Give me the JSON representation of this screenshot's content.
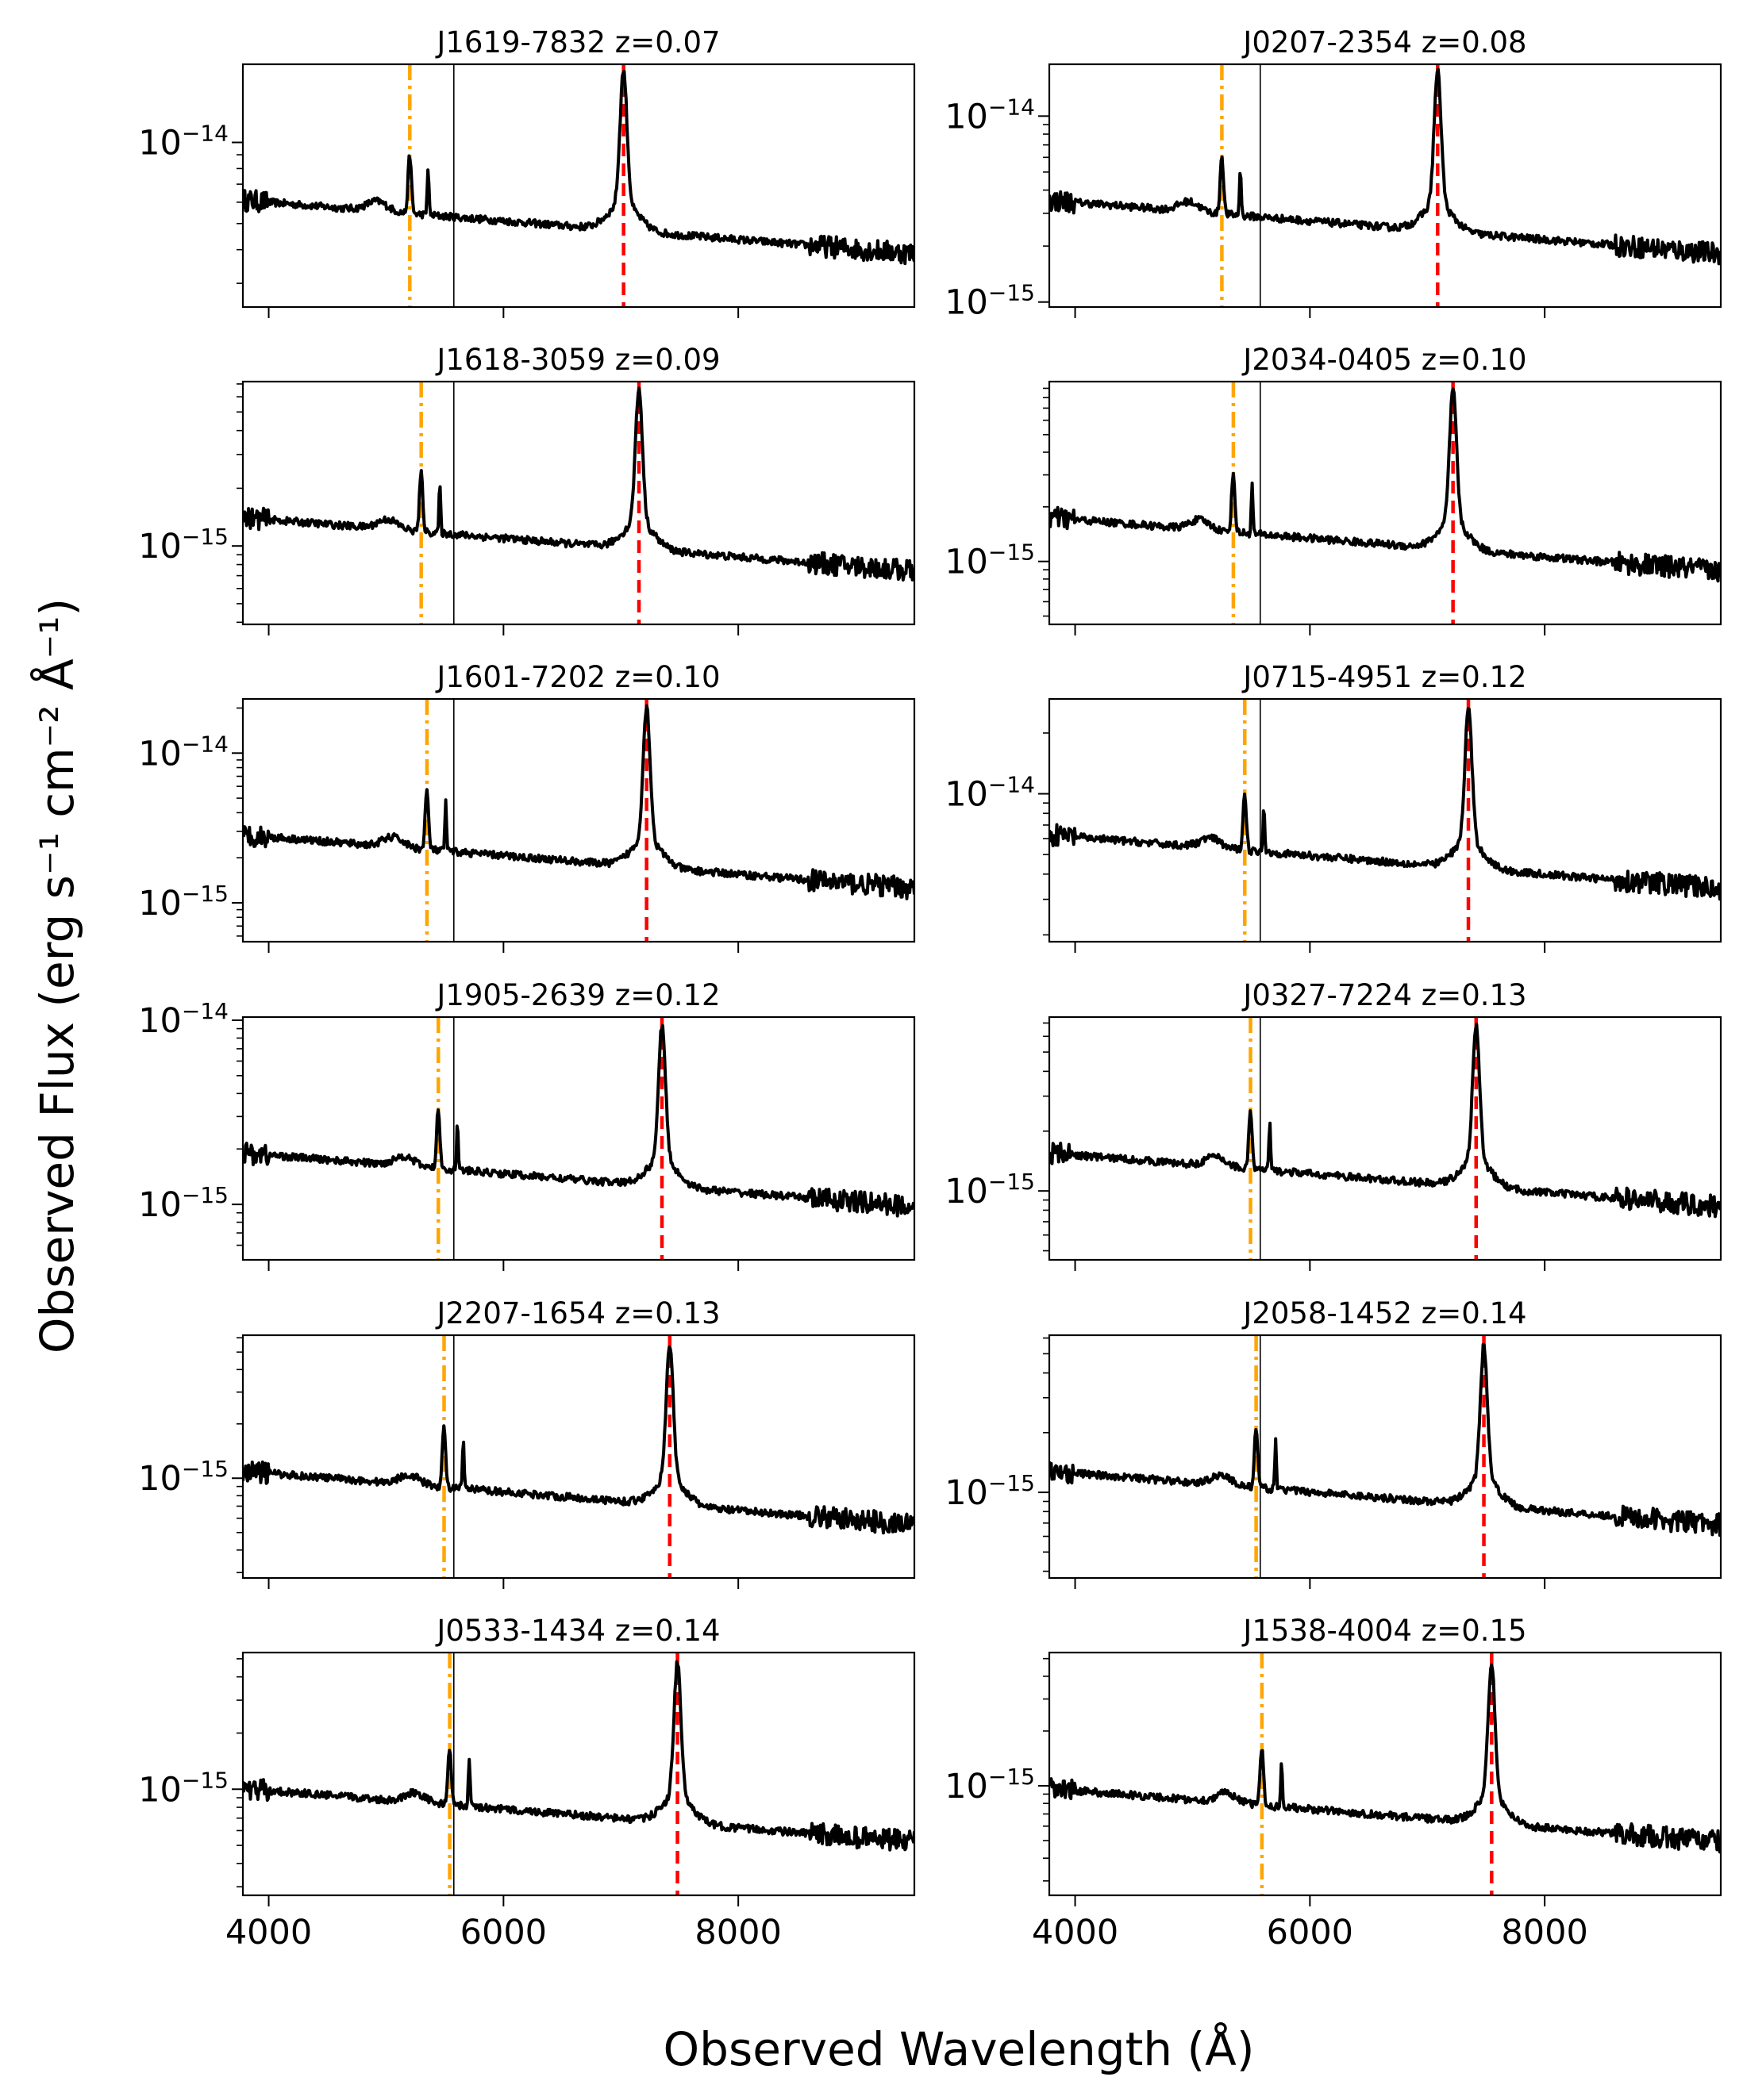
{
  "figure": {
    "xlabel": "Observed Wavelength (Å)",
    "ylabel": "Observed Flux (erg s⁻¹ cm⁻² Å⁻¹)"
  },
  "chart_data": [
    {
      "type": "line",
      "title": "J1619-7832 z=0.07",
      "z": 0.07,
      "xlim": [
        3780,
        9500
      ],
      "ylim": [
        2.45e-15,
        1.95e-14
      ],
      "yticks": [
        {
          "value": 1e-14,
          "label_base": "10",
          "label_exp": "−14"
        }
      ],
      "series": [
        {
          "name": "spectrum",
          "color": "#000000"
        }
      ],
      "lines": [
        {
          "name": "Hβ",
          "x": 5202,
          "color": "#FFA500",
          "style": "dashdot"
        },
        {
          "name": "Hα",
          "x": 7023,
          "color": "#FF0000",
          "style": "dashed"
        },
        {
          "name": "5577",
          "x": 5577,
          "color": "#000000",
          "style": "solid"
        }
      ]
    },
    {
      "type": "line",
      "title": "J0207-2354 z=0.08",
      "z": 0.08,
      "xlim": [
        3780,
        9500
      ],
      "ylim": [
        9.4e-16,
        1.9e-14
      ],
      "yticks": [
        {
          "value": 1e-14,
          "label_base": "10",
          "label_exp": "−14"
        },
        {
          "value": 1e-15,
          "label_base": "10",
          "label_exp": "−15"
        }
      ],
      "series": [
        {
          "name": "spectrum",
          "color": "#000000"
        }
      ],
      "lines": [
        {
          "name": "Hβ",
          "x": 5250,
          "color": "#FFA500",
          "style": "dashdot"
        },
        {
          "name": "Hα",
          "x": 7088,
          "color": "#FF0000",
          "style": "dashed"
        },
        {
          "name": "5577",
          "x": 5577,
          "color": "#000000",
          "style": "solid"
        }
      ]
    },
    {
      "type": "line",
      "title": "J1618-3059 z=0.09",
      "z": 0.09,
      "xlim": [
        3780,
        9500
      ],
      "ylim": [
        3.9e-16,
        7.2e-15
      ],
      "yticks": [
        {
          "value": 1e-15,
          "label_base": "10",
          "label_exp": "−15"
        }
      ],
      "series": [
        {
          "name": "spectrum",
          "color": "#000000"
        }
      ],
      "lines": [
        {
          "name": "Hβ",
          "x": 5299,
          "color": "#FFA500",
          "style": "dashdot"
        },
        {
          "name": "Hα",
          "x": 7154,
          "color": "#FF0000",
          "style": "dashed"
        },
        {
          "name": "5577",
          "x": 5577,
          "color": "#000000",
          "style": "solid"
        }
      ]
    },
    {
      "type": "line",
      "title": "J2034-0405 z=0.10",
      "z": 0.1,
      "xlim": [
        3780,
        9500
      ],
      "ylim": [
        4.5e-16,
        9.8e-15
      ],
      "yticks": [
        {
          "value": 1e-15,
          "label_base": "10",
          "label_exp": "−15"
        }
      ],
      "series": [
        {
          "name": "spectrum",
          "color": "#000000"
        }
      ],
      "lines": [
        {
          "name": "Hβ",
          "x": 5348,
          "color": "#FFA500",
          "style": "dashdot"
        },
        {
          "name": "Hα",
          "x": 7219,
          "color": "#FF0000",
          "style": "dashed"
        },
        {
          "name": "5577",
          "x": 5577,
          "color": "#000000",
          "style": "solid"
        }
      ]
    },
    {
      "type": "line",
      "title": "J1601-7202 z=0.10",
      "z": 0.1,
      "xlim": [
        3780,
        9500
      ],
      "ylim": [
        5.5e-16,
        2.3e-14
      ],
      "yticks": [
        {
          "value": 1e-14,
          "label_base": "10",
          "label_exp": "−14"
        },
        {
          "value": 1e-15,
          "label_base": "10",
          "label_exp": "−15"
        }
      ],
      "series": [
        {
          "name": "spectrum",
          "color": "#000000"
        }
      ],
      "lines": [
        {
          "name": "Hβ",
          "x": 5348,
          "color": "#FFA500",
          "style": "dashdot"
        },
        {
          "name": "Hα",
          "x": 7219,
          "color": "#FF0000",
          "style": "dashed"
        },
        {
          "name": "5577",
          "x": 5577,
          "color": "#000000",
          "style": "solid"
        }
      ]
    },
    {
      "type": "line",
      "title": "J0715-4951 z=0.12",
      "z": 0.12,
      "xlim": [
        3780,
        9500
      ],
      "ylim": [
        1.85e-15,
        2.95e-14
      ],
      "yticks": [
        {
          "value": 1e-14,
          "label_base": "10",
          "label_exp": "−14"
        }
      ],
      "series": [
        {
          "name": "spectrum",
          "color": "#000000"
        }
      ],
      "lines": [
        {
          "name": "Hβ",
          "x": 5445,
          "color": "#FFA500",
          "style": "dashdot"
        },
        {
          "name": "Hα",
          "x": 7350,
          "color": "#FF0000",
          "style": "dashed"
        },
        {
          "name": "5577",
          "x": 5577,
          "color": "#000000",
          "style": "solid"
        }
      ]
    },
    {
      "type": "line",
      "title": "J1905-2639 z=0.12",
      "z": 0.12,
      "xlim": [
        3780,
        9500
      ],
      "ylim": [
        5e-16,
        1.04e-14
      ],
      "yticks": [
        {
          "value": 1e-14,
          "label_base": "10",
          "label_exp": "−14"
        },
        {
          "value": 1e-15,
          "label_base": "10",
          "label_exp": "−15"
        }
      ],
      "series": [
        {
          "name": "spectrum",
          "color": "#000000"
        }
      ],
      "lines": [
        {
          "name": "Hβ",
          "x": 5445,
          "color": "#FFA500",
          "style": "dashdot"
        },
        {
          "name": "Hα",
          "x": 7350,
          "color": "#FF0000",
          "style": "dashed"
        },
        {
          "name": "5577",
          "x": 5577,
          "color": "#000000",
          "style": "solid"
        }
      ]
    },
    {
      "type": "line",
      "title": "J0327-7224 z=0.13",
      "z": 0.13,
      "xlim": [
        3780,
        9500
      ],
      "ylim": [
        4.5e-16,
        7.5e-15
      ],
      "yticks": [
        {
          "value": 1e-15,
          "label_base": "10",
          "label_exp": "−15"
        }
      ],
      "series": [
        {
          "name": "spectrum",
          "color": "#000000"
        }
      ],
      "lines": [
        {
          "name": "Hβ",
          "x": 5494,
          "color": "#FFA500",
          "style": "dashdot"
        },
        {
          "name": "Hα",
          "x": 7416,
          "color": "#FF0000",
          "style": "dashed"
        },
        {
          "name": "5577",
          "x": 5577,
          "color": "#000000",
          "style": "solid"
        }
      ]
    },
    {
      "type": "line",
      "title": "J2207-1654 z=0.13",
      "z": 0.13,
      "xlim": [
        3780,
        9500
      ],
      "ylim": [
        2.8e-16,
        6.2e-15
      ],
      "yticks": [
        {
          "value": 1e-15,
          "label_base": "10",
          "label_exp": "−15"
        }
      ],
      "series": [
        {
          "name": "spectrum",
          "color": "#000000"
        }
      ],
      "lines": [
        {
          "name": "Hβ",
          "x": 5494,
          "color": "#FFA500",
          "style": "dashdot"
        },
        {
          "name": "Hα",
          "x": 7416,
          "color": "#FF0000",
          "style": "dashed"
        },
        {
          "name": "5577",
          "x": 5577,
          "color": "#000000",
          "style": "solid"
        }
      ]
    },
    {
      "type": "line",
      "title": "J2058-1452 z=0.14",
      "z": 0.14,
      "xlim": [
        3780,
        9500
      ],
      "ylim": [
        3.7e-16,
        6.2e-15
      ],
      "yticks": [
        {
          "value": 1e-15,
          "label_base": "10",
          "label_exp": "−15"
        }
      ],
      "series": [
        {
          "name": "spectrum",
          "color": "#000000"
        }
      ],
      "lines": [
        {
          "name": "Hβ",
          "x": 5542,
          "color": "#FFA500",
          "style": "dashdot"
        },
        {
          "name": "Hα",
          "x": 7482,
          "color": "#FF0000",
          "style": "dashed"
        },
        {
          "name": "5577",
          "x": 5577,
          "color": "#000000",
          "style": "solid"
        }
      ]
    },
    {
      "type": "line",
      "title": "J0533-1434 z=0.14",
      "z": 0.14,
      "xlim": [
        3780,
        9500
      ],
      "ylim": [
        2.7e-16,
        5.4e-15
      ],
      "yticks": [
        {
          "value": 1e-15,
          "label_base": "10",
          "label_exp": "−15"
        }
      ],
      "series": [
        {
          "name": "spectrum",
          "color": "#000000"
        }
      ],
      "lines": [
        {
          "name": "Hβ",
          "x": 5542,
          "color": "#FFA500",
          "style": "dashdot"
        },
        {
          "name": "Hα",
          "x": 7482,
          "color": "#FF0000",
          "style": "dashed"
        },
        {
          "name": "5577",
          "x": 5577,
          "color": "#000000",
          "style": "solid"
        }
      ]
    },
    {
      "type": "line",
      "title": "J1538-4004 z=0.15",
      "z": 0.15,
      "xlim": [
        3780,
        9500
      ],
      "ylim": [
        2.5e-16,
        5.4e-15
      ],
      "yticks": [
        {
          "value": 1e-15,
          "label_base": "10",
          "label_exp": "−15"
        }
      ],
      "series": [
        {
          "name": "spectrum",
          "color": "#000000"
        }
      ],
      "lines": [
        {
          "name": "Hβ",
          "x": 5591,
          "color": "#FFA500",
          "style": "dashdot"
        },
        {
          "name": "Hα",
          "x": 7548,
          "color": "#FF0000",
          "style": "dashed"
        }
      ]
    }
  ],
  "shared_x_axis": {
    "ticks": [
      {
        "value": 4000,
        "label": "4000"
      },
      {
        "value": 6000,
        "label": "6000"
      },
      {
        "value": 8000,
        "label": "8000"
      }
    ]
  }
}
